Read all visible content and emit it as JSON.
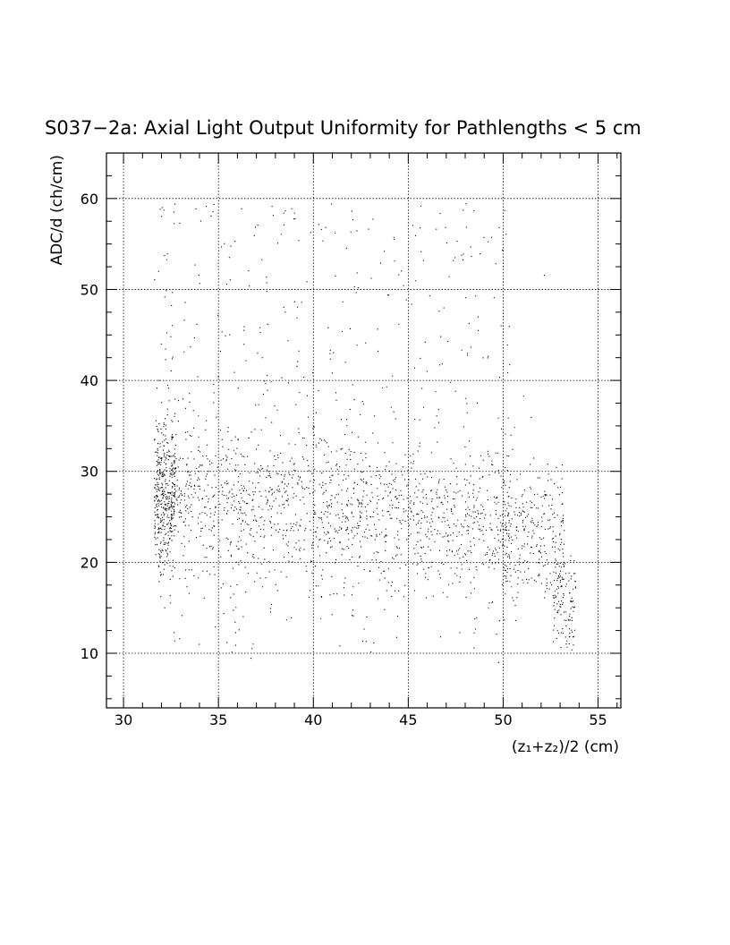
{
  "chart_data": {
    "type": "scatter",
    "title": "S037−2a: Axial Light Output Uniformity for Pathlengths < 5 cm",
    "xlabel": "(z₁+z₂)/2 (cm)",
    "ylabel": "ADC/d (ch/cm)",
    "xlim": [
      29.1,
      56.2
    ],
    "ylim": [
      4.0,
      65.0
    ],
    "x_ticks": [
      30,
      35,
      40,
      45,
      50,
      55
    ],
    "y_ticks": [
      10,
      20,
      30,
      40,
      50,
      60
    ],
    "grid": true,
    "legend": "none",
    "marker_color": "#000000",
    "point_density_model": {
      "approx_point_count": 20000,
      "note_visible_clusters": [
        {
          "x_range": [
            31.5,
            32.8
          ],
          "y_center": 27,
          "y_spread": 5
        },
        {
          "x_range": [
            32.8,
            50.0
          ],
          "y_center": 27,
          "y_spread": 4
        },
        {
          "x_range": [
            50.0,
            53.8
          ],
          "y_center": 22,
          "y_spread": 4
        },
        {
          "x_range": [
            52.5,
            53.8
          ],
          "y_center": 16,
          "y_spread": 3
        }
      ],
      "x_range_of_data": [
        31.5,
        53.9
      ],
      "y_range_of_data": [
        9.0,
        59.5
      ]
    }
  }
}
